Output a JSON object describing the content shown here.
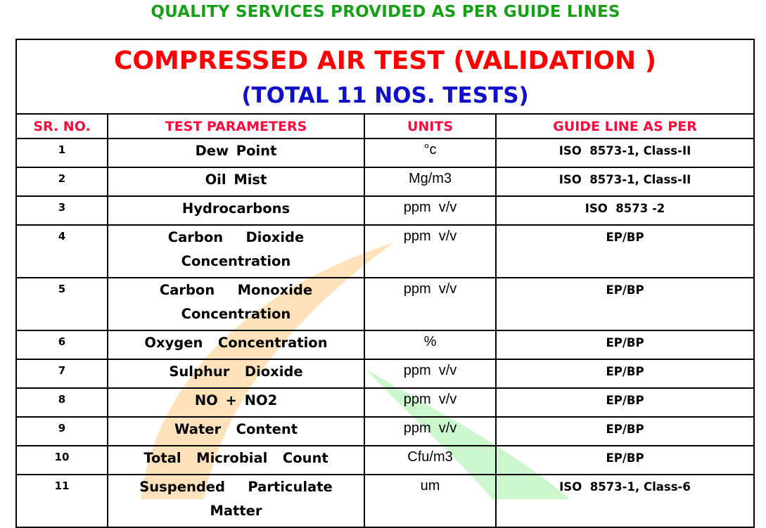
{
  "heading": "QUALITY SERVICES PROVIDED AS PER GUIDE LINES",
  "title": "COMPRESSED AIR TEST (VALIDATION )",
  "subtitle": "(TOTAL 11 NOS. TESTS)",
  "colors": {
    "heading": "#17a017",
    "title": "#ff0000",
    "subtitle": "#1010c8",
    "column_headers": "#ff0a3c",
    "watermark_orange": "#ffd9a8",
    "watermark_green": "#c8f5c8"
  },
  "columns": [
    "SR. NO.",
    "TEST PARAMETERS",
    "UNITS",
    "GUIDE LINE AS PER"
  ],
  "rows": [
    {
      "sr": "1",
      "param_lines": [
        "Dew Point"
      ],
      "unit": "°c",
      "guide": "ISO  8573-1, Class-II"
    },
    {
      "sr": "2",
      "param_lines": [
        "Oil Mist"
      ],
      "unit": "Mg/m3",
      "guide": "ISO  8573-1, Class-II"
    },
    {
      "sr": "3",
      "param_lines": [
        "Hydrocarbons"
      ],
      "unit": "ppm  v/v",
      "guide": "ISO  8573 -2"
    },
    {
      "sr": "4",
      "param_lines": [
        "Carbon   Dioxide",
        "Concentration"
      ],
      "unit": "ppm  v/v",
      "guide": "EP/BP"
    },
    {
      "sr": "5",
      "param_lines": [
        "Carbon   Monoxide",
        "Concentration"
      ],
      "unit": "ppm  v/v",
      "guide": "EP/BP"
    },
    {
      "sr": "6",
      "param_lines": [
        "Oxygen  Concentration"
      ],
      "unit": "%",
      "guide": "EP/BP"
    },
    {
      "sr": "7",
      "param_lines": [
        "Sulphur  Dioxide"
      ],
      "unit": "ppm  v/v",
      "guide": "EP/BP"
    },
    {
      "sr": "8",
      "param_lines": [
        "NO + NO2"
      ],
      "unit": "ppm  v/v",
      "guide": "EP/BP"
    },
    {
      "sr": "9",
      "param_lines": [
        "Water  Content"
      ],
      "unit": "ppm  v/v",
      "guide": "EP/BP"
    },
    {
      "sr": "10",
      "param_lines": [
        "Total  Microbial  Count"
      ],
      "unit": "Cfu/m3",
      "guide": "EP/BP"
    },
    {
      "sr": "11",
      "param_lines": [
        "Suspended   Particulate",
        "Matter"
      ],
      "unit": "um",
      "guide": "ISO  8573-1, Class-6"
    }
  ]
}
